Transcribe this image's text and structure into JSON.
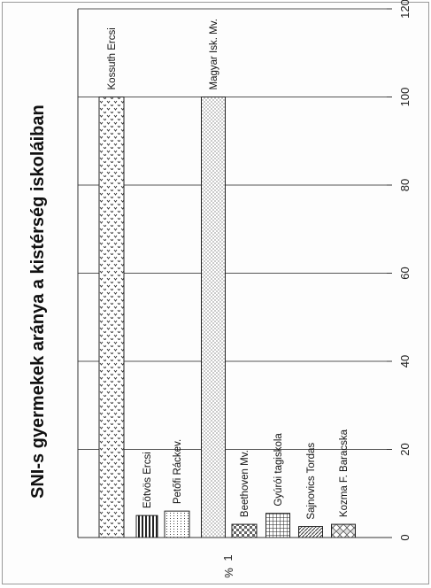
{
  "chart_data": {
    "type": "bar",
    "orientation": "horizontal",
    "title": "SNI-s gyermekek aránya a kistérség iskoláiban",
    "ylabel": "%",
    "category_axis_tick": "1",
    "categories": [
      "Kossuth Ercsi",
      "Eötvös Ercsi",
      "Petőfi Ráckev.",
      "Magyar Isk. Mv.",
      "Beethoven Mv.",
      "Gyúrói tagiskola",
      "Sajnovics Tordas",
      "Kozma F. Baracska"
    ],
    "values": [
      100,
      5,
      6,
      100,
      3,
      5.5,
      2.5,
      3
    ],
    "patterns": [
      "dots-v",
      "vlines",
      "hlines",
      "dots-fine",
      "checker",
      "grid",
      "diag",
      "diamond"
    ],
    "xlim": [
      0,
      120
    ],
    "xticks": [
      "0",
      "20",
      "40",
      "60",
      "80",
      "100",
      "120"
    ],
    "grid": true,
    "legend": "none"
  }
}
